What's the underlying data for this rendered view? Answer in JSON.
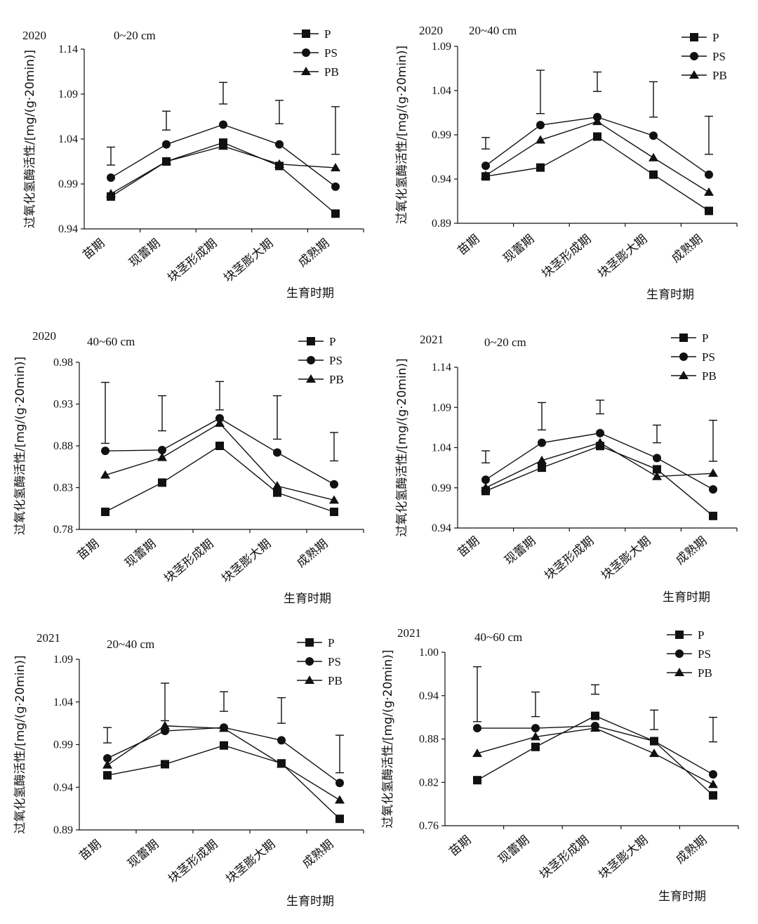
{
  "figure": {
    "ylabel": "过氧化氢酶活性/[mg/(g·20min)]",
    "xlabel": "生育时期",
    "legend": [
      "P",
      "PS",
      "PB"
    ]
  },
  "chart_data": [
    {
      "type": "line",
      "year": "2020",
      "depth": "0~20 cm",
      "categories": [
        "苗期",
        "现蕾期",
        "块茎形成期",
        "块茎膨大期",
        "成熟期"
      ],
      "ylim": [
        0.94,
        1.14
      ],
      "yticks": [
        "0.94",
        "0.99",
        "1.04",
        "1.09",
        "1.14"
      ],
      "xlabel": "生育时期",
      "ylabel": "过氧化氢酶活性/[mg/(g·20min)]",
      "legend_position": "top-right",
      "series": [
        {
          "name": "P",
          "marker": "square",
          "values": [
            0.976,
            1.015,
            1.036,
            1.01,
            0.957
          ]
        },
        {
          "name": "PS",
          "marker": "circle",
          "values": [
            0.997,
            1.034,
            1.056,
            1.034,
            0.987
          ]
        },
        {
          "name": "PB",
          "marker": "triangle",
          "values": [
            0.979,
            1.015,
            1.032,
            1.012,
            1.008
          ]
        }
      ],
      "error_bars": [
        [
          1.011,
          1.031
        ],
        [
          1.05,
          1.071
        ],
        [
          1.079,
          1.103
        ],
        [
          1.057,
          1.083
        ],
        [
          1.023,
          1.076
        ]
      ]
    },
    {
      "type": "line",
      "year": "2020",
      "depth": "20~40 cm",
      "categories": [
        "苗期",
        "现蕾期",
        "块茎形成期",
        "块茎膨大期",
        "成熟期"
      ],
      "ylim": [
        0.89,
        1.09
      ],
      "yticks": [
        "0.89",
        "0.94",
        "0.99",
        "1.04",
        "1.09"
      ],
      "xlabel": "生育时期",
      "ylabel": "过氧化氢酶活性/[mg/(g·20min)]",
      "legend_position": "top-right",
      "series": [
        {
          "name": "P",
          "marker": "square",
          "values": [
            0.943,
            0.953,
            0.988,
            0.945,
            0.904
          ]
        },
        {
          "name": "PS",
          "marker": "circle",
          "values": [
            0.955,
            1.001,
            1.01,
            0.989,
            0.945
          ]
        },
        {
          "name": "PB",
          "marker": "triangle",
          "values": [
            0.944,
            0.984,
            1.005,
            0.964,
            0.925
          ]
        }
      ],
      "error_bars": [
        [
          0.974,
          0.987
        ],
        [
          1.014,
          1.063
        ],
        [
          1.039,
          1.061
        ],
        [
          1.01,
          1.05
        ],
        [
          0.968,
          1.011
        ]
      ]
    },
    {
      "type": "line",
      "year": "2020",
      "depth": "40~60 cm",
      "categories": [
        "苗期",
        "现蕾期",
        "块茎形成期",
        "块茎膨大期",
        "成熟期"
      ],
      "ylim": [
        0.78,
        0.98
      ],
      "yticks": [
        "0.78",
        "0.83",
        "0.88",
        "0.93",
        "0.98"
      ],
      "xlabel": "生育时期",
      "ylabel": "过氧化氢酶活性/[mg/(g·20min)]",
      "legend_position": "top-right",
      "series": [
        {
          "name": "P",
          "marker": "square",
          "values": [
            0.801,
            0.836,
            0.88,
            0.824,
            0.801
          ]
        },
        {
          "name": "PS",
          "marker": "circle",
          "values": [
            0.874,
            0.875,
            0.913,
            0.872,
            0.834
          ]
        },
        {
          "name": "PB",
          "marker": "triangle",
          "values": [
            0.845,
            0.866,
            0.907,
            0.832,
            0.815
          ]
        }
      ],
      "error_bars": [
        [
          0.883,
          0.956
        ],
        [
          0.898,
          0.94
        ],
        [
          0.923,
          0.957
        ],
        [
          0.888,
          0.94
        ],
        [
          0.862,
          0.896
        ]
      ]
    },
    {
      "type": "line",
      "year": "2021",
      "depth": "0~20 cm",
      "categories": [
        "苗期",
        "现蕾期",
        "块茎形成期",
        "块茎膨大期",
        "成熟期"
      ],
      "ylim": [
        0.94,
        1.14
      ],
      "yticks": [
        "0.94",
        "0.99",
        "1.04",
        "1.09",
        "1.14"
      ],
      "xlabel": "生育时期",
      "ylabel": "过氧化氢酶活性/[mg/(g·20min)]",
      "legend_position": "top-right",
      "series": [
        {
          "name": "P",
          "marker": "square",
          "values": [
            0.986,
            1.015,
            1.042,
            1.013,
            0.955
          ]
        },
        {
          "name": "PS",
          "marker": "circle",
          "values": [
            1.0,
            1.046,
            1.058,
            1.027,
            0.988
          ]
        },
        {
          "name": "PB",
          "marker": "triangle",
          "values": [
            0.99,
            1.024,
            1.046,
            1.004,
            1.008
          ]
        }
      ],
      "error_bars": [
        [
          1.021,
          1.036
        ],
        [
          1.062,
          1.096
        ],
        [
          1.082,
          1.099
        ],
        [
          1.046,
          1.068
        ],
        [
          1.023,
          1.074
        ]
      ]
    },
    {
      "type": "line",
      "year": "2021",
      "depth": "20~40 cm",
      "categories": [
        "苗期",
        "现蕾期",
        "块茎形成期",
        "块茎膨大期",
        "成熟期"
      ],
      "ylim": [
        0.89,
        1.09
      ],
      "yticks": [
        "0.89",
        "0.94",
        "0.99",
        "1.04",
        "1.09"
      ],
      "xlabel": "生育时期",
      "ylabel": "过氧化氢酶活性/[mg/(g·20min)]",
      "legend_position": "top-right",
      "series": [
        {
          "name": "P",
          "marker": "square",
          "values": [
            0.954,
            0.967,
            0.989,
            0.968,
            0.903
          ]
        },
        {
          "name": "PS",
          "marker": "circle",
          "values": [
            0.974,
            1.006,
            1.01,
            0.995,
            0.945
          ]
        },
        {
          "name": "PB",
          "marker": "triangle",
          "values": [
            0.966,
            1.012,
            1.009,
            0.967,
            0.925
          ]
        }
      ],
      "error_bars": [
        [
          0.992,
          1.01
        ],
        [
          1.018,
          1.062
        ],
        [
          1.029,
          1.052
        ],
        [
          1.015,
          1.045
        ],
        [
          0.957,
          1.001
        ]
      ]
    },
    {
      "type": "line",
      "year": "2021",
      "depth": "40~60 cm",
      "categories": [
        "苗期",
        "现蕾期",
        "块茎形成期",
        "块茎膨大期",
        "成熟期"
      ],
      "ylim": [
        0.76,
        1.0
      ],
      "yticks": [
        "0.76",
        "0.82",
        "0.88",
        "0.94",
        "1.00"
      ],
      "xlabel": "生育时期",
      "ylabel": "过氧化氢酶活性/[mg/(g·20min)]",
      "legend_position": "top-right",
      "series": [
        {
          "name": "P",
          "marker": "square",
          "values": [
            0.823,
            0.869,
            0.912,
            0.877,
            0.802
          ]
        },
        {
          "name": "PS",
          "marker": "circle",
          "values": [
            0.895,
            0.895,
            0.898,
            0.877,
            0.831
          ]
        },
        {
          "name": "PB",
          "marker": "triangle",
          "values": [
            0.86,
            0.883,
            0.895,
            0.86,
            0.817
          ]
        }
      ],
      "error_bars": [
        [
          0.904,
          0.98
        ],
        [
          0.911,
          0.945
        ],
        [
          0.942,
          0.955
        ],
        [
          0.893,
          0.92
        ],
        [
          0.876,
          0.91
        ]
      ]
    }
  ]
}
